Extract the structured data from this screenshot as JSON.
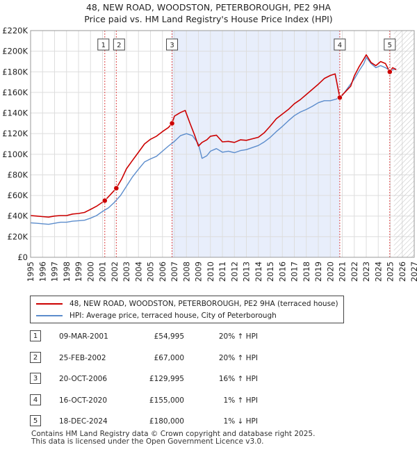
{
  "title_line1": "48, NEW ROAD, WOODSTON, PETERBOROUGH, PE2 9HA",
  "title_line2": "Price paid vs. HM Land Registry's House Price Index (HPI)",
  "chart_data": {
    "type": "line",
    "title": "48, NEW ROAD, WOODSTON, PETERBOROUGH, PE2 9HA — Price paid vs. HM Land Registry's House Price Index (HPI)",
    "xlim": [
      1995,
      2027
    ],
    "ylim": [
      0,
      220000
    ],
    "x_ticks": [
      1995,
      1996,
      1997,
      1998,
      1999,
      2000,
      2001,
      2002,
      2003,
      2004,
      2005,
      2006,
      2007,
      2008,
      2009,
      2010,
      2011,
      2012,
      2013,
      2014,
      2015,
      2016,
      2017,
      2018,
      2019,
      2020,
      2021,
      2022,
      2023,
      2024,
      2025,
      2026,
      2027
    ],
    "y_ticks": [
      0,
      20000,
      40000,
      60000,
      80000,
      100000,
      120000,
      140000,
      160000,
      180000,
      200000,
      220000
    ],
    "y_tick_labels": [
      "£0",
      "£20K",
      "£40K",
      "£60K",
      "£80K",
      "£100K",
      "£120K",
      "£140K",
      "£160K",
      "£180K",
      "£200K",
      "£220K"
    ],
    "shaded_span": [
      2006.8,
      2020.79
    ],
    "forecast_start": 2025.3,
    "colors": {
      "property": "#cc0000",
      "hpi": "#5b8ccc",
      "shade": "#e8eefb",
      "grid": "#dddddd",
      "marker_line": "#dd4444"
    },
    "series": [
      {
        "name": "48, NEW ROAD, WOODSTON, PETERBOROUGH, PE2 9HA (terraced house)",
        "x": [
          1995.0,
          1995.5,
          1996.0,
          1996.5,
          1997.0,
          1997.5,
          1998.0,
          1998.5,
          1999.0,
          1999.5,
          2000.0,
          2000.5,
          2001.19,
          2001.6,
          2002.15,
          2002.6,
          2003.0,
          2003.5,
          2004.0,
          2004.5,
          2005.0,
          2005.5,
          2006.0,
          2006.5,
          2006.8,
          2007.0,
          2007.5,
          2007.9,
          2008.3,
          2008.7,
          2009.0,
          2009.3,
          2009.7,
          2010.0,
          2010.5,
          2011.0,
          2011.5,
          2012.0,
          2012.5,
          2013.0,
          2013.5,
          2014.0,
          2014.5,
          2015.0,
          2015.5,
          2016.0,
          2016.5,
          2017.0,
          2017.5,
          2018.0,
          2018.5,
          2019.0,
          2019.5,
          2020.0,
          2020.4,
          2020.79,
          2021.2,
          2021.7,
          2022.0,
          2022.4,
          2022.8,
          2023.0,
          2023.4,
          2023.8,
          2024.2,
          2024.6,
          2024.96,
          2025.2,
          2025.5
        ],
        "y": [
          40500,
          40000,
          39500,
          39000,
          40000,
          40500,
          40500,
          42000,
          42500,
          43500,
          46500,
          49500,
          54995,
          60000,
          67000,
          76000,
          86000,
          94000,
          102000,
          110000,
          114500,
          117500,
          122000,
          126000,
          129995,
          137000,
          140500,
          142500,
          130000,
          118000,
          108000,
          111500,
          114000,
          117500,
          118500,
          112000,
          112500,
          111500,
          114000,
          113500,
          115000,
          116500,
          121000,
          127500,
          134500,
          139000,
          143500,
          149000,
          153000,
          158000,
          163000,
          168000,
          173500,
          176500,
          178000,
          155000,
          160000,
          166000,
          176000,
          185000,
          192500,
          196500,
          189000,
          186000,
          190000,
          188000,
          180000,
          184000,
          182000
        ]
      },
      {
        "name": "HPI: Average price, terraced house, City of Peterborough",
        "x": [
          1995.0,
          1995.5,
          1996.0,
          1996.5,
          1997.0,
          1997.5,
          1998.0,
          1998.5,
          1999.0,
          1999.5,
          2000.0,
          2000.5,
          2001.0,
          2001.5,
          2002.0,
          2002.5,
          2003.0,
          2003.5,
          2004.0,
          2004.5,
          2005.0,
          2005.5,
          2006.0,
          2006.5,
          2007.0,
          2007.5,
          2008.0,
          2008.5,
          2009.0,
          2009.3,
          2009.7,
          2010.0,
          2010.5,
          2011.0,
          2011.5,
          2012.0,
          2012.5,
          2013.0,
          2013.5,
          2014.0,
          2014.5,
          2015.0,
          2015.5,
          2016.0,
          2016.5,
          2017.0,
          2017.5,
          2018.0,
          2018.5,
          2019.0,
          2019.5,
          2020.0,
          2020.5,
          2021.0,
          2021.5,
          2022.0,
          2022.4,
          2022.8,
          2023.0,
          2023.4,
          2023.8,
          2024.2,
          2024.6,
          2025.0,
          2025.5
        ],
        "y": [
          33500,
          33000,
          32500,
          32000,
          33000,
          34000,
          34000,
          35000,
          35500,
          36000,
          38000,
          40500,
          44500,
          48000,
          53500,
          60000,
          69000,
          78000,
          85500,
          92500,
          95500,
          98000,
          103000,
          108000,
          112500,
          118000,
          120000,
          118000,
          110000,
          96000,
          98500,
          103000,
          105500,
          102000,
          103000,
          101500,
          103500,
          104500,
          106500,
          108500,
          112000,
          116500,
          122000,
          127000,
          132500,
          137500,
          141000,
          143500,
          146500,
          150000,
          152000,
          152000,
          153500,
          157000,
          165000,
          173000,
          181000,
          188000,
          194000,
          188000,
          184000,
          186000,
          184000,
          181000,
          183000
        ]
      }
    ],
    "sale_markers": [
      {
        "label": "1",
        "x": 2001.19,
        "y": 54995
      },
      {
        "label": "2",
        "x": 2002.15,
        "y": 67000
      },
      {
        "label": "3",
        "x": 2006.8,
        "y": 129995
      },
      {
        "label": "4",
        "x": 2020.79,
        "y": 155000
      },
      {
        "label": "5",
        "x": 2024.96,
        "y": 180000
      }
    ]
  },
  "legend": {
    "property": "48, NEW ROAD, WOODSTON, PETERBOROUGH, PE2 9HA (terraced house)",
    "hpi": "HPI: Average price, terraced house, City of Peterborough"
  },
  "transactions": [
    {
      "num": "1",
      "date": "09-MAR-2001",
      "price": "£54,995",
      "hpi": "20% ↑ HPI"
    },
    {
      "num": "2",
      "date": "25-FEB-2002",
      "price": "£67,000",
      "hpi": "20% ↑ HPI"
    },
    {
      "num": "3",
      "date": "20-OCT-2006",
      "price": "£129,995",
      "hpi": "16% ↑ HPI"
    },
    {
      "num": "4",
      "date": "16-OCT-2020",
      "price": "£155,000",
      "hpi": "1% ↑ HPI"
    },
    {
      "num": "5",
      "date": "18-DEC-2024",
      "price": "£180,000",
      "hpi": "1% ↓ HPI"
    }
  ],
  "footer_line1": "Contains HM Land Registry data © Crown copyright and database right 2025.",
  "footer_line2": "This data is licensed under the Open Government Licence v3.0."
}
